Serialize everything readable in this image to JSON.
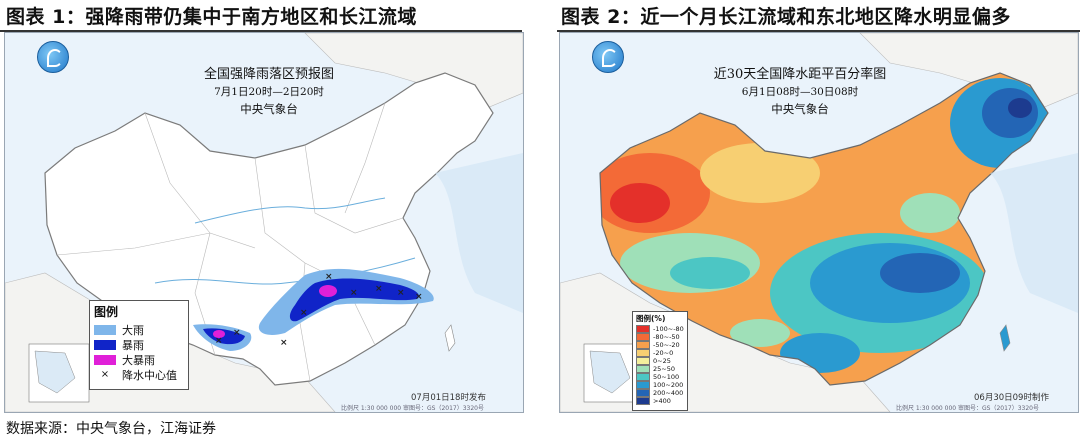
{
  "captions": {
    "left": "图表 1：强降雨带仍集中于南方地区和长江流域",
    "right": "图表 2：近一个月长江流域和东北地区降水明显偏多"
  },
  "map1": {
    "title": "全国强降雨落区预报图",
    "period": "7月1日20时—2日20时",
    "issuer": "中央气象台",
    "stamp": "07月01日18时发布",
    "legend_title": "图例",
    "legend_items": [
      {
        "label": "大雨",
        "color": "#7fb6ea"
      },
      {
        "label": "暴雨",
        "color": "#1024c8"
      },
      {
        "label": "大暴雨",
        "color": "#e020d8"
      },
      {
        "label": "降水中心值",
        "symbol": "×"
      }
    ],
    "scale_note": "比例尺 1:30 000 000    审图号：GS（2017）3320号"
  },
  "map2": {
    "title": "近30天全国降水距平百分率图",
    "period": "6月1日08时—30日08时",
    "issuer": "中央气象台",
    "stamp": "06月30日09时制作",
    "legend_title": "图例(%)",
    "legend_items": [
      {
        "label": "-100~-80",
        "color": "#e4302a"
      },
      {
        "label": "-80~-50",
        "color": "#f36a37"
      },
      {
        "label": "-50~-20",
        "color": "#f6a04d"
      },
      {
        "label": "-20~0",
        "color": "#f7cf72"
      },
      {
        "label": "0~25",
        "color": "#f4ef9c"
      },
      {
        "label": "25~50",
        "color": "#9fe0b8"
      },
      {
        "label": "50~100",
        "color": "#4cc6c4"
      },
      {
        "label": "100~200",
        "color": "#2a9ad0"
      },
      {
        "label": "200~400",
        "color": "#2365b5"
      },
      {
        "label": ">400",
        "color": "#1d3b8f"
      }
    ],
    "scale_note": "比例尺 1:30 000 000    审图号：GS（2017）3320号"
  },
  "source": "数据来源：中央气象台，江海证券"
}
